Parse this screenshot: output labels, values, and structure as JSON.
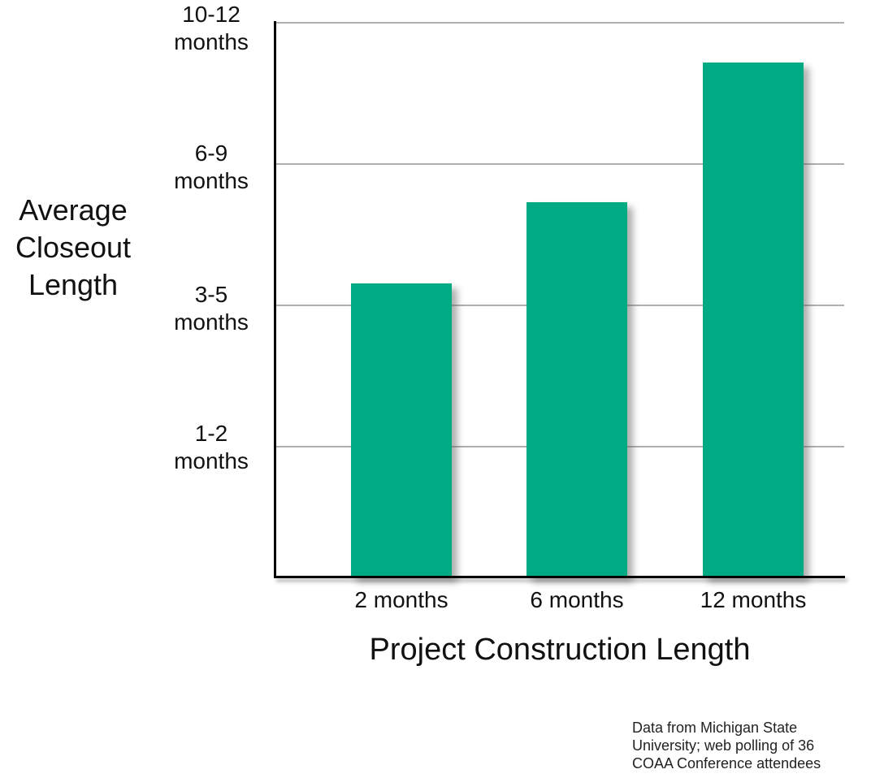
{
  "chart_data": {
    "type": "bar",
    "title": "",
    "xlabel": "Project Construction Length",
    "ylabel": "Average Closeout Length",
    "ylabel_lines": [
      "Average",
      "Closeout",
      "Length"
    ],
    "categories": [
      "2 months",
      "6 months",
      "12 months"
    ],
    "y_tick_labels": [
      "10-12 months",
      "6-9 months",
      "3-5 months",
      "1-2 months"
    ],
    "y_tick_lines": [
      [
        "10-12",
        "months"
      ],
      [
        "6-9",
        "months"
      ],
      [
        "3-5",
        "months"
      ],
      [
        "1-2",
        "months"
      ]
    ],
    "series": [
      {
        "name": "Average closeout length",
        "values_approx_months": [
          4,
          6.5,
          10
        ]
      }
    ],
    "bar_height_fractions": [
      0.529,
      0.675,
      0.927
    ],
    "y_axis_type": "ordinal ranges",
    "grid": true,
    "legend": false,
    "bar_color": "#00AB84",
    "gridline_color": "#B0AEB2",
    "axis_color": "#000000"
  },
  "footer": {
    "lines": [
      "Data from Michigan State",
      "University; web polling of 36",
      "COAA Conference attendees"
    ],
    "text": "Data from Michigan State University; web polling of 36 COAA Conference attendees"
  }
}
